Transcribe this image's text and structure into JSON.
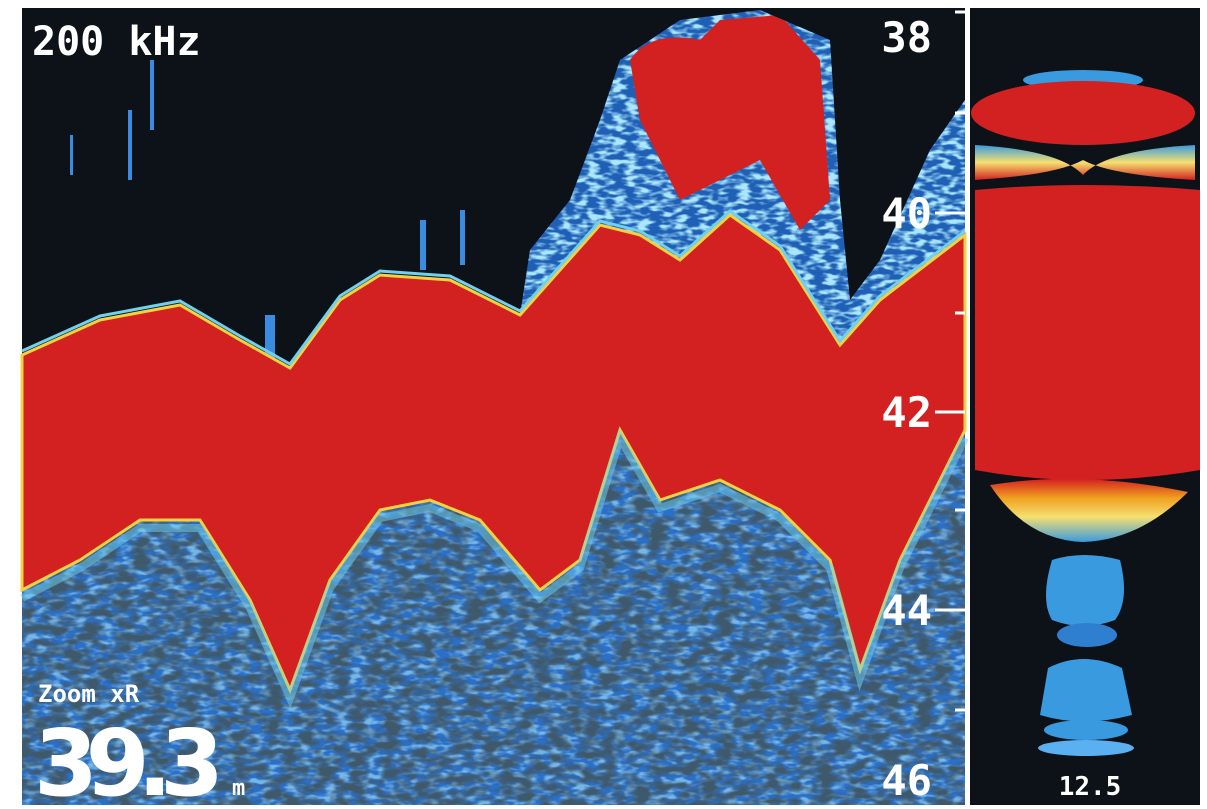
{
  "header": {
    "frequency": "200 kHz"
  },
  "depth_scale": {
    "labels": [
      "38",
      "40",
      "42",
      "44",
      "46"
    ]
  },
  "readout": {
    "zoom": "Zoom xR",
    "depth": "39.3",
    "unit": "m"
  },
  "ascope": {
    "label": "12.5"
  }
}
